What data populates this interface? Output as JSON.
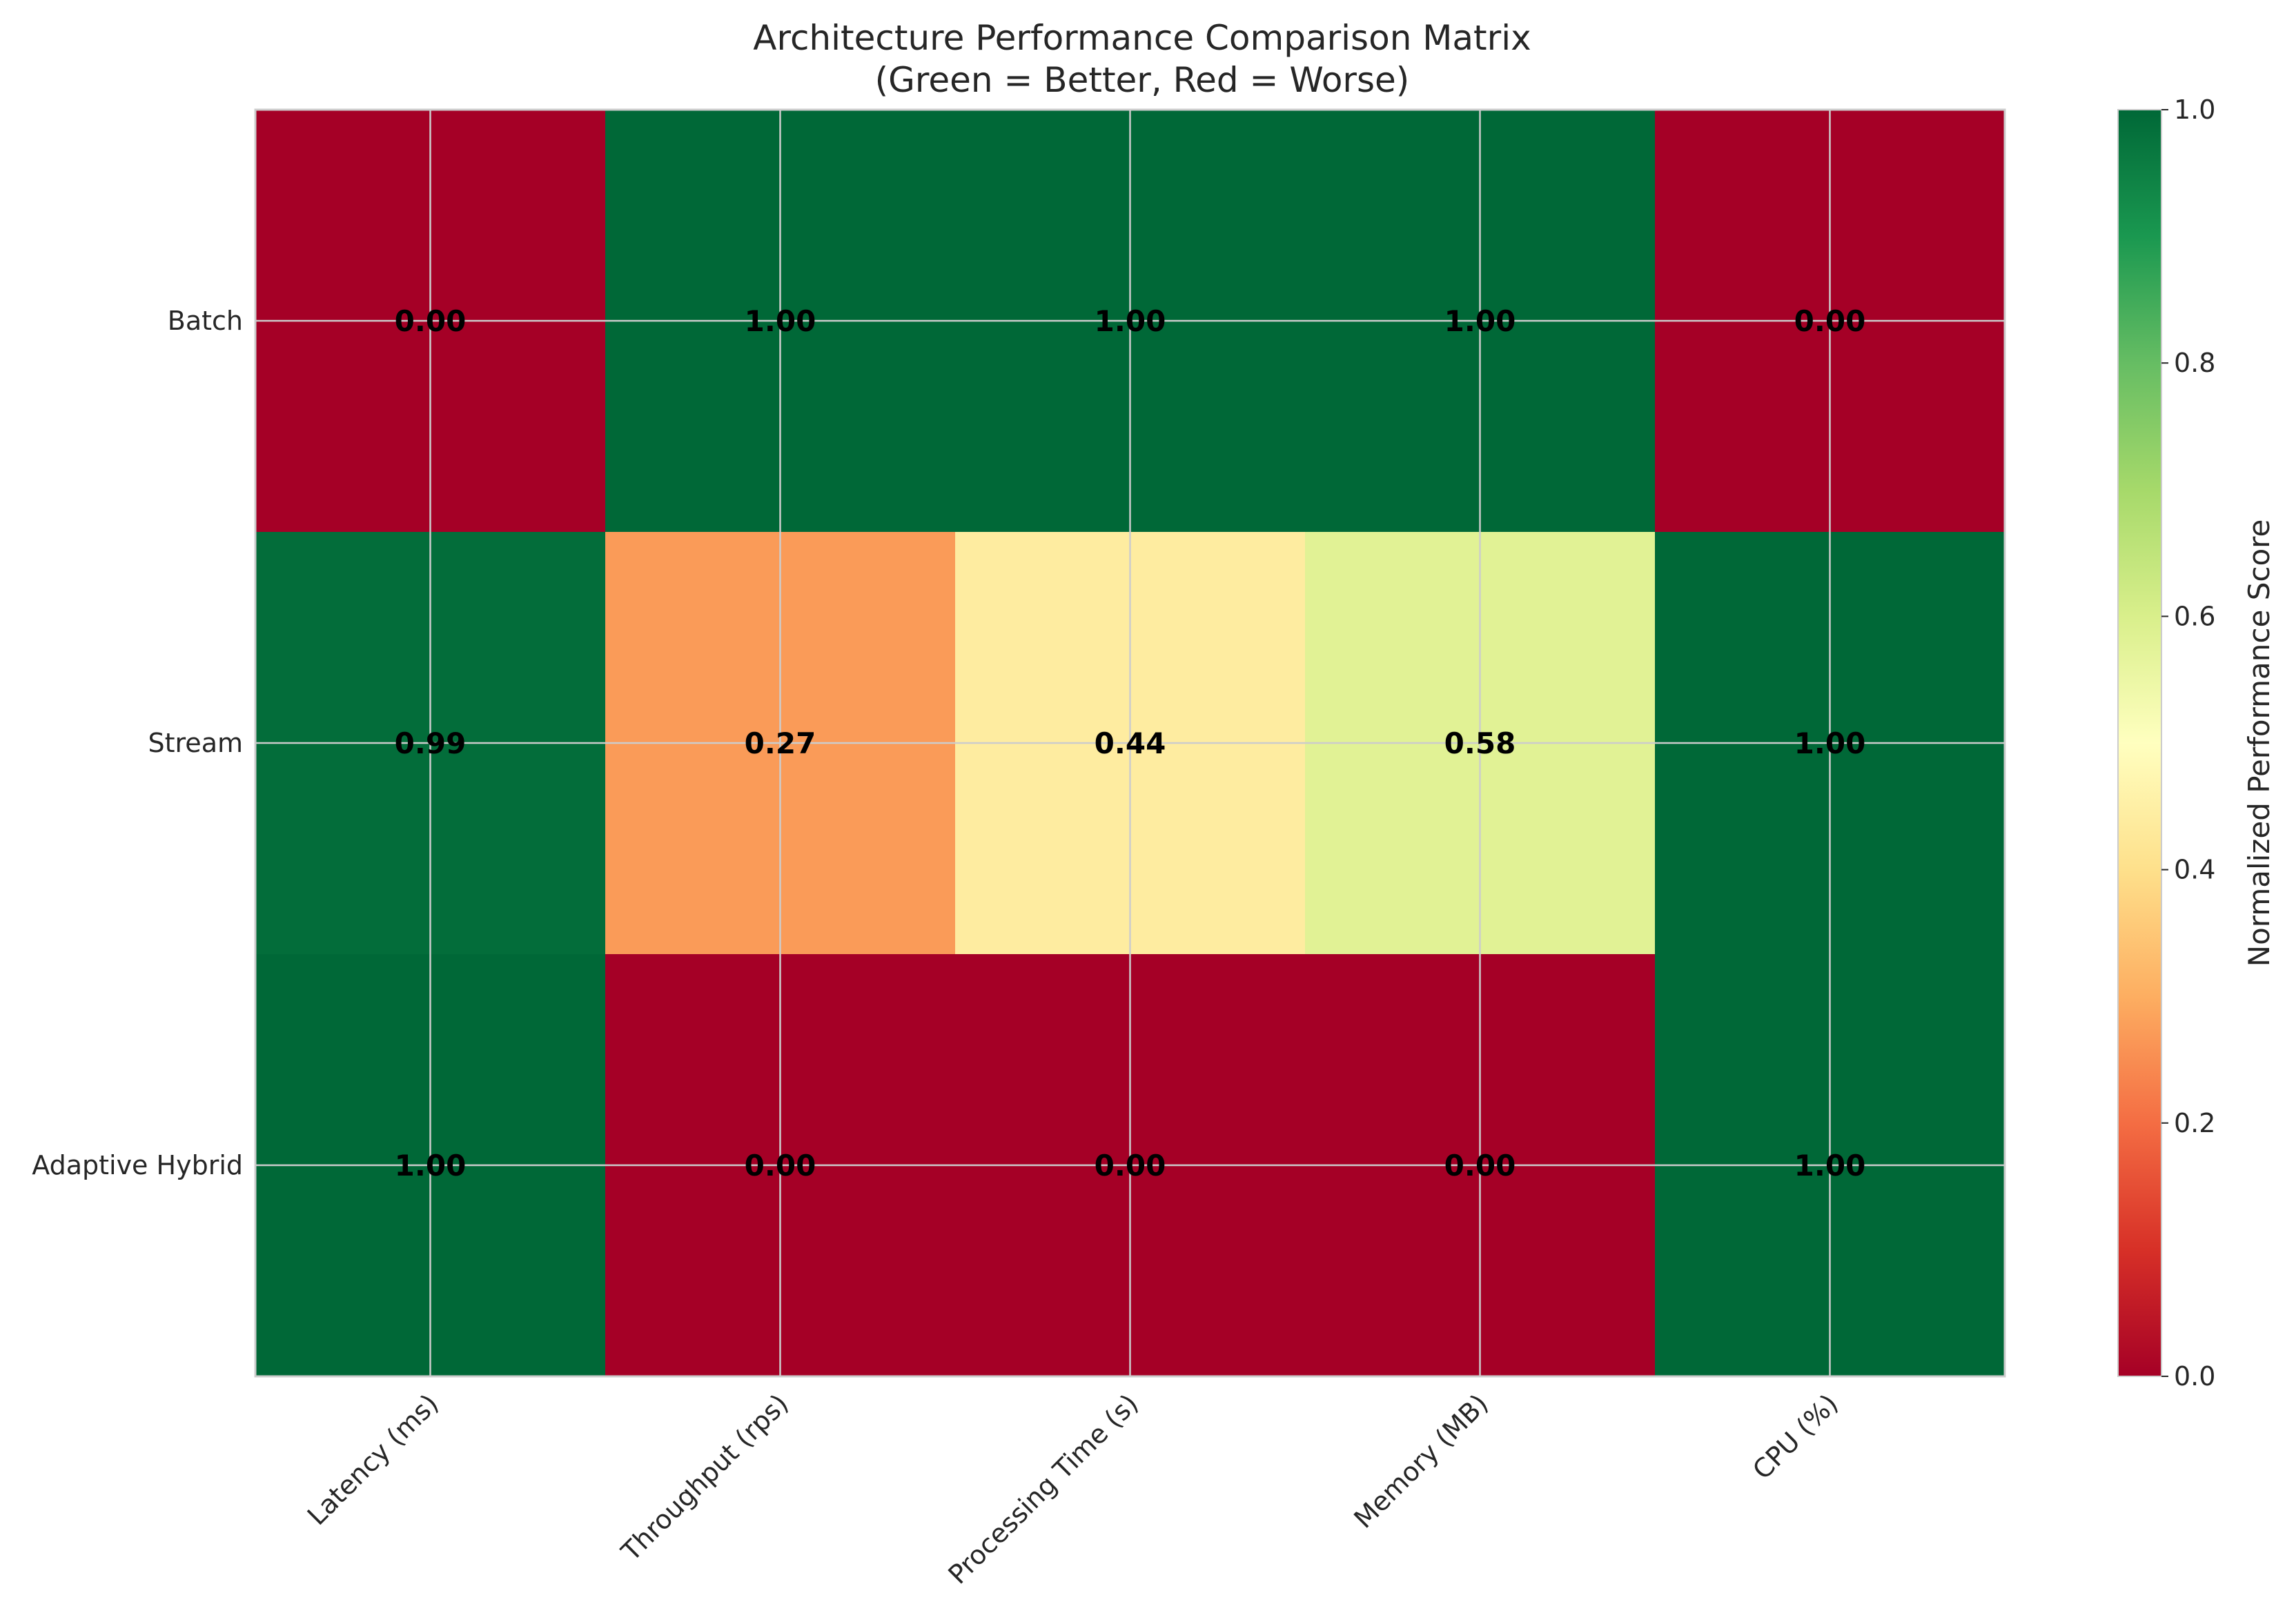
{
  "chart_data": {
    "type": "heatmap",
    "title": "Architecture Performance Comparison Matrix",
    "subtitle": "(Green = Better, Red = Worse)",
    "rows": [
      "Batch",
      "Stream",
      "Adaptive Hybrid"
    ],
    "columns": [
      "Latency (ms)",
      "Throughput (rps)",
      "Processing Time (s)",
      "Memory (MB)",
      "CPU (%)"
    ],
    "values": [
      [
        0.0,
        1.0,
        1.0,
        1.0,
        0.0
      ],
      [
        0.99,
        0.27,
        0.44,
        0.58,
        1.0
      ],
      [
        1.0,
        0.0,
        0.0,
        0.0,
        1.0
      ]
    ],
    "value_format": "0.00",
    "colormap": "RdYlGn",
    "vmin": 0.0,
    "vmax": 1.0,
    "colorbar": {
      "label": "Normalized Performance Score",
      "ticks": [
        "0.0",
        "0.2",
        "0.4",
        "0.6",
        "0.8",
        "1.0"
      ]
    },
    "grid": true,
    "colors": {
      "grid": "#cccccc",
      "frame": "#cccccc",
      "text": "#262626",
      "cell_text": "#000000"
    }
  }
}
